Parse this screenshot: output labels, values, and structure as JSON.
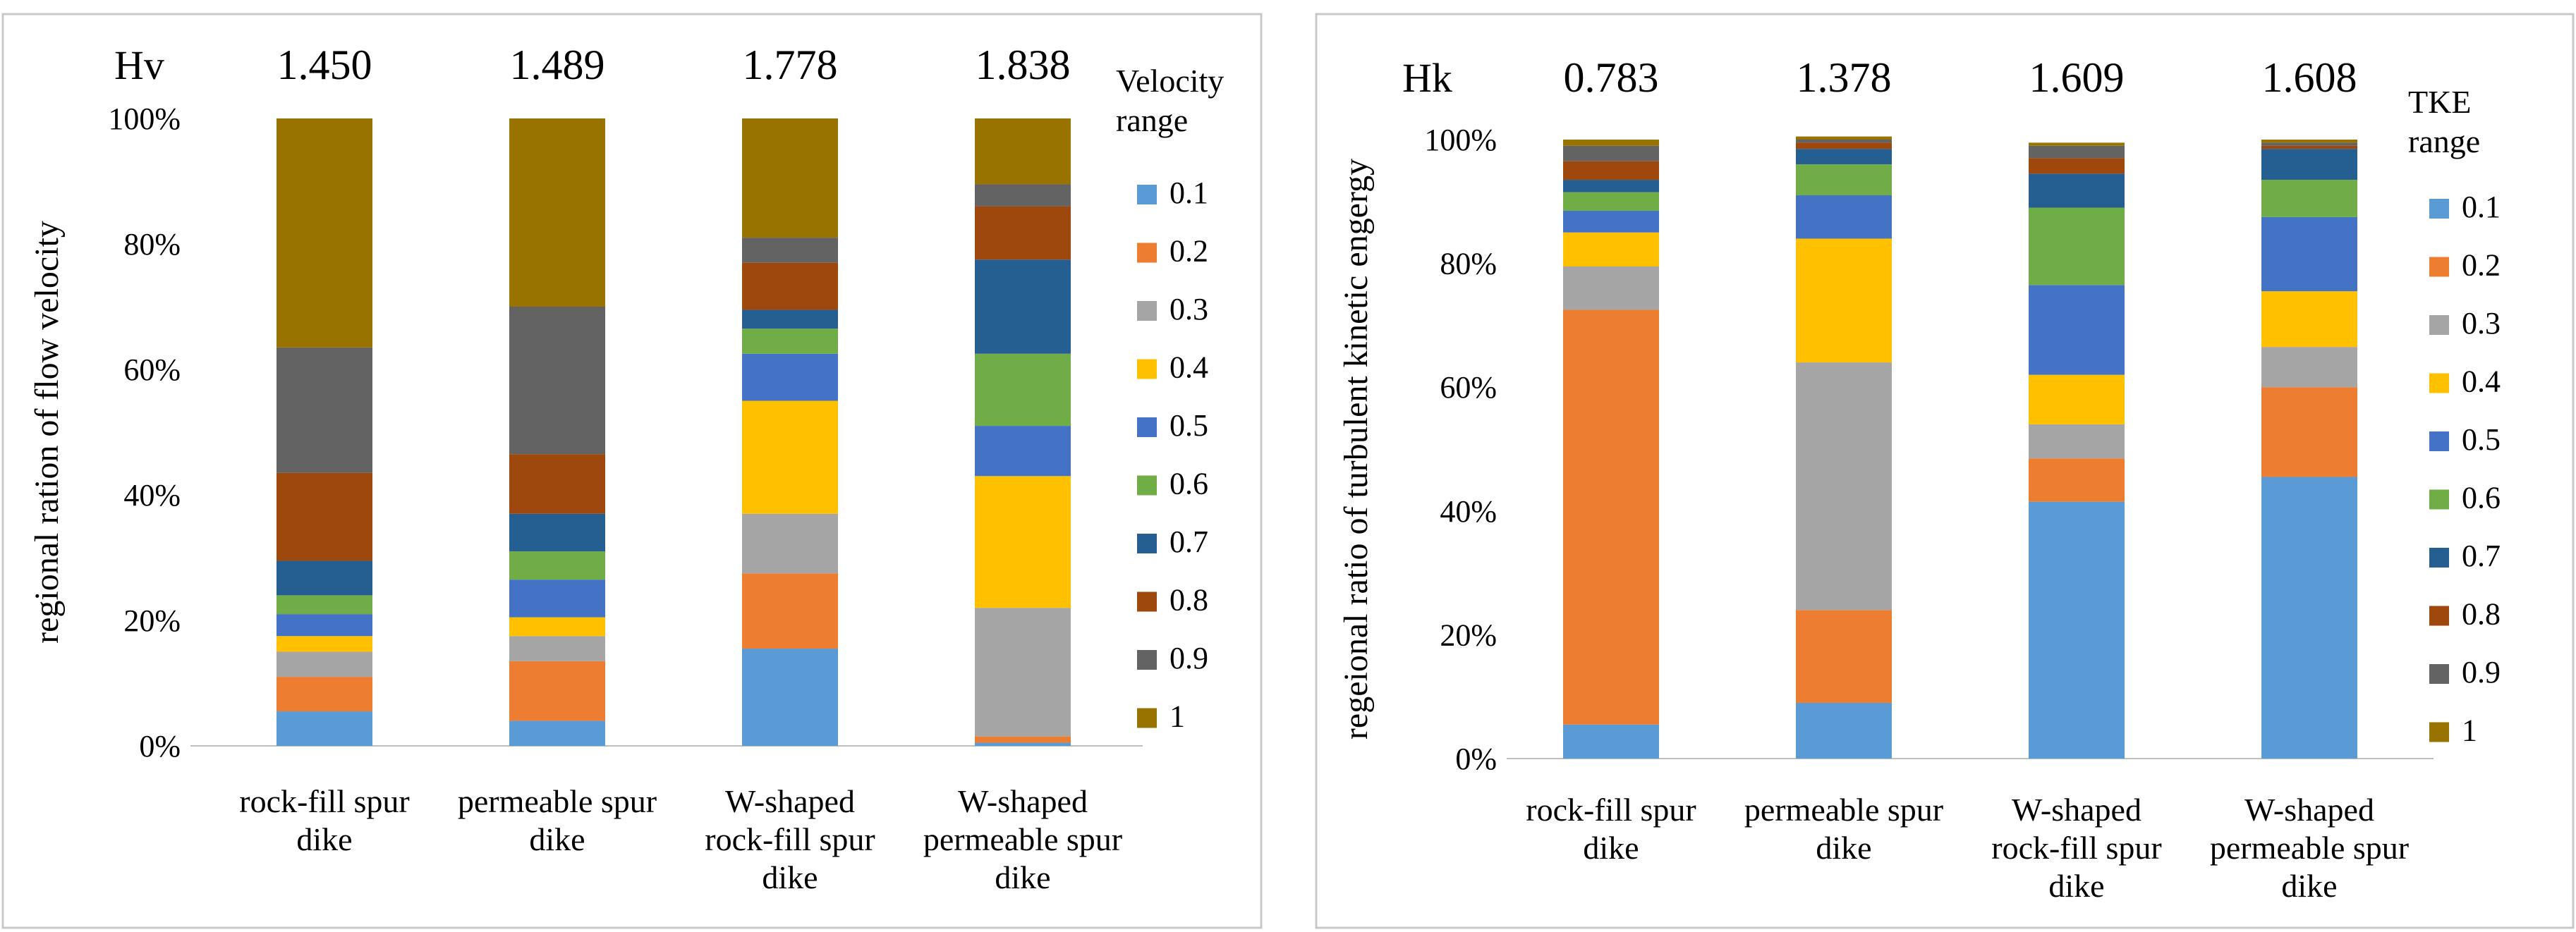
{
  "chart_data": [
    {
      "type": "bar",
      "stacked": true,
      "ylabel": "regional ration of flow velocity",
      "ylim": [
        0,
        100
      ],
      "yticks": [
        "0%",
        "20%",
        "40%",
        "60%",
        "80%",
        "100%"
      ],
      "header_label": "Hv",
      "header_values": [
        "1.450",
        "1.489",
        "1.778",
        "1.838"
      ],
      "categories": [
        [
          "rock-fill spur",
          "dike"
        ],
        [
          "permeable spur",
          "dike"
        ],
        [
          "W-shaped",
          "rock-fill spur",
          "dike"
        ],
        [
          "W-shaped",
          "permeable spur",
          "dike"
        ]
      ],
      "legend_title": [
        "Velocity",
        "range"
      ],
      "series": [
        {
          "name": "0.1",
          "color": "#5b9bd5",
          "values": [
            5.5,
            4.0,
            15.5,
            0.5
          ]
        },
        {
          "name": "0.2",
          "color": "#ed7d31",
          "values": [
            5.5,
            9.5,
            12.0,
            1.0
          ]
        },
        {
          "name": "0.3",
          "color": "#a5a5a5",
          "values": [
            4.0,
            4.0,
            9.5,
            20.5
          ]
        },
        {
          "name": "0.4",
          "color": "#ffc000",
          "values": [
            2.5,
            3.0,
            18.0,
            21.0
          ]
        },
        {
          "name": "0.5",
          "color": "#4472c4",
          "values": [
            3.5,
            6.0,
            7.5,
            8.0
          ]
        },
        {
          "name": "0.6",
          "color": "#70ad47",
          "values": [
            3.0,
            4.5,
            4.0,
            11.5
          ]
        },
        {
          "name": "0.7",
          "color": "#255e91",
          "values": [
            5.5,
            6.0,
            3.0,
            15.0
          ]
        },
        {
          "name": "0.8",
          "color": "#9e480e",
          "values": [
            14.0,
            9.5,
            7.5,
            8.5
          ]
        },
        {
          "name": "0.9",
          "color": "#636363",
          "values": [
            20.0,
            23.5,
            4.0,
            3.5
          ]
        },
        {
          "name": "1",
          "color": "#997300",
          "values": [
            36.5,
            30.0,
            19.0,
            10.5
          ]
        }
      ]
    },
    {
      "type": "bar",
      "stacked": true,
      "ylabel": "regeional ratio of turbulent kinetic engergy",
      "ylim": [
        0,
        100
      ],
      "yticks": [
        "0%",
        "20%",
        "40%",
        "60%",
        "80%",
        "100%"
      ],
      "header_label": "Hk",
      "header_values": [
        "0.783",
        "1.378",
        "1.609",
        "1.608"
      ],
      "categories": [
        [
          "rock-fill spur",
          "dike"
        ],
        [
          "permeable spur",
          "dike"
        ],
        [
          "W-shaped",
          "rock-fill spur",
          "dike"
        ],
        [
          "W-shaped",
          "permeable spur",
          "dike"
        ]
      ],
      "legend_title": [
        "TKE",
        "range"
      ],
      "series": [
        {
          "name": "0.1",
          "color": "#5b9bd5",
          "values": [
            5.5,
            9.0,
            41.5,
            45.5
          ]
        },
        {
          "name": "0.2",
          "color": "#ed7d31",
          "values": [
            67.0,
            15.0,
            7.0,
            14.5
          ]
        },
        {
          "name": "0.3",
          "color": "#a5a5a5",
          "values": [
            7.0,
            40.0,
            5.5,
            6.5
          ]
        },
        {
          "name": "0.4",
          "color": "#ffc000",
          "values": [
            5.5,
            20.0,
            8.0,
            9.0
          ]
        },
        {
          "name": "0.5",
          "color": "#4472c4",
          "values": [
            3.5,
            7.0,
            14.5,
            12.0
          ]
        },
        {
          "name": "0.6",
          "color": "#70ad47",
          "values": [
            3.0,
            5.0,
            12.5,
            6.0
          ]
        },
        {
          "name": "0.7",
          "color": "#255e91",
          "values": [
            2.0,
            2.5,
            5.5,
            5.0
          ]
        },
        {
          "name": "0.8",
          "color": "#9e480e",
          "values": [
            3.0,
            1.0,
            2.5,
            0.5
          ]
        },
        {
          "name": "0.9",
          "color": "#636363",
          "values": [
            2.5,
            0.5,
            2.0,
            0.5
          ]
        },
        {
          "name": "1",
          "color": "#997300",
          "values": [
            1.0,
            0.5,
            0.5,
            0.5
          ]
        }
      ]
    }
  ]
}
